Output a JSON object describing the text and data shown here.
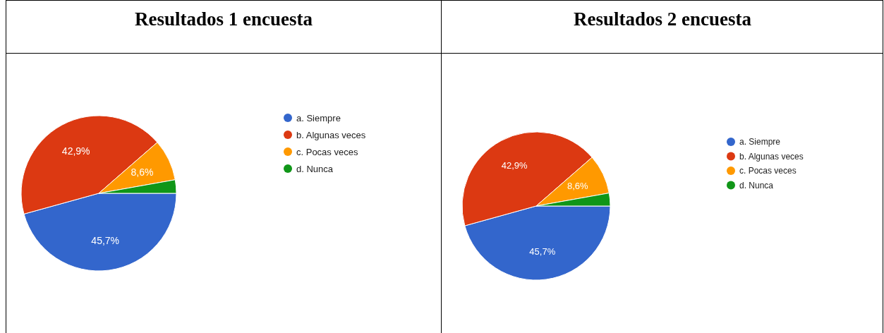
{
  "chart_data": [
    {
      "type": "pie",
      "title": "Resultados 1 encuesta",
      "categories": [
        "a. Siempre",
        "b. Algunas veces",
        "c. Pocas veces",
        "d. Nunca"
      ],
      "values": [
        45.7,
        42.9,
        8.6,
        2.8
      ],
      "colors": [
        "#3366cc",
        "#dc3912",
        "#ff9900",
        "#109618"
      ],
      "value_labels": [
        "45,7%",
        "42,9%",
        "8,6%",
        null
      ],
      "legend": "right"
    },
    {
      "type": "pie",
      "title": "Resultados 2 encuesta",
      "categories": [
        "a. Siempre",
        "b. Algunas veces",
        "c. Pocas veces",
        "d. Nunca"
      ],
      "values": [
        45.7,
        42.9,
        8.6,
        2.8
      ],
      "colors": [
        "#3366cc",
        "#dc3912",
        "#ff9900",
        "#109618"
      ],
      "value_labels": [
        "45,7%",
        "42,9%",
        "8,6%",
        null
      ],
      "legend": "right"
    }
  ]
}
